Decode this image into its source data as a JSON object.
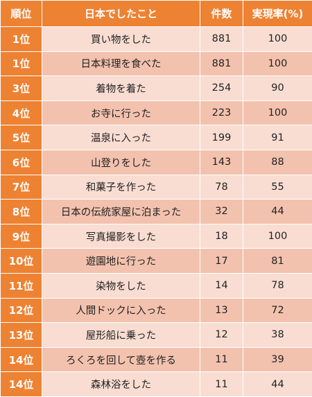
{
  "colors": {
    "header_bg": "#ee8233",
    "rank_bg": "#ee8233",
    "row_light": "#f9ddd2",
    "row_dark": "#f3c2ae",
    "header_text": "#ffffff",
    "body_text": "#222222"
  },
  "header": {
    "rank": "順位",
    "item": "日本でしたこと",
    "count": "件数",
    "rate": "実現率(%)"
  },
  "rows": [
    {
      "rank": "1位",
      "item": "買い物をした",
      "count": "881",
      "rate": "100"
    },
    {
      "rank": "1位",
      "item": "日本料理を食べた",
      "count": "881",
      "rate": "100"
    },
    {
      "rank": "3位",
      "item": "着物を着た",
      "count": "254",
      "rate": "90"
    },
    {
      "rank": "4位",
      "item": "お寺に行った",
      "count": "223",
      "rate": "100"
    },
    {
      "rank": "5位",
      "item": "温泉に入った",
      "count": "199",
      "rate": "91"
    },
    {
      "rank": "6位",
      "item": "山登りをした",
      "count": "143",
      "rate": "88"
    },
    {
      "rank": "7位",
      "item": "和菓子を作った",
      "count": "78",
      "rate": "55"
    },
    {
      "rank": "8位",
      "item": "日本の伝統家屋に泊まった",
      "count": "32",
      "rate": "44"
    },
    {
      "rank": "9位",
      "item": "写真撮影をした",
      "count": "18",
      "rate": "100"
    },
    {
      "rank": "10位",
      "item": "遊園地に行った",
      "count": "17",
      "rate": "81"
    },
    {
      "rank": "11位",
      "item": "染物をした",
      "count": "14",
      "rate": "78"
    },
    {
      "rank": "12位",
      "item": "人間ドックに入った",
      "count": "13",
      "rate": "72"
    },
    {
      "rank": "13位",
      "item": "屋形船に乗った",
      "count": "12",
      "rate": "38"
    },
    {
      "rank": "14位",
      "item": "ろくろを回して壺を作る",
      "count": "11",
      "rate": "39"
    },
    {
      "rank": "14位",
      "item": "森林浴をした",
      "count": "11",
      "rate": "44"
    }
  ]
}
